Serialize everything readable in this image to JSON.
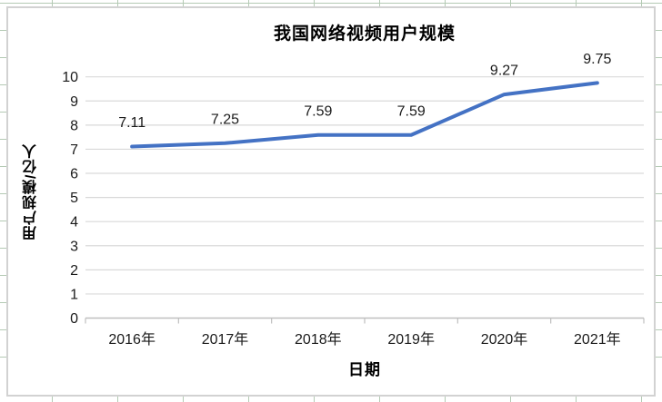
{
  "spreadsheet": {
    "grid_color": "#b4cab4"
  },
  "chart_data": {
    "type": "line",
    "title": "我国网络视频用户规模",
    "xlabel": "日期",
    "ylabel": "用户规模/亿人",
    "categories": [
      "2016年",
      "2017年",
      "2018年",
      "2019年",
      "2020年",
      "2021年"
    ],
    "values": [
      7.11,
      7.25,
      7.59,
      7.59,
      9.27,
      9.75
    ],
    "data_labels": [
      "7.11",
      "7.25",
      "7.59",
      "7.59",
      "9.27",
      "9.75"
    ],
    "ylim": [
      0,
      10
    ],
    "yticks": [
      0,
      1,
      2,
      3,
      4,
      5,
      6,
      7,
      8,
      9,
      10
    ],
    "grid": true,
    "legend": "none",
    "line_color": "#4472C4",
    "gridline_color": "#D9D9D9",
    "axis_color": "#BFBFBF",
    "text_color": "#1a1a1a",
    "title_color": "#000000"
  }
}
